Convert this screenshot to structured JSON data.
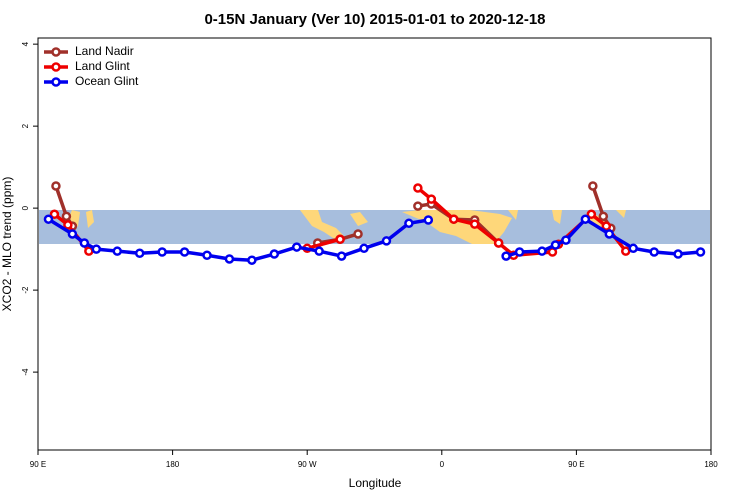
{
  "chart_data": {
    "type": "line",
    "title": "0-15N January (Ver 10)   2015-01-01 to 2020-12-18",
    "x_label": "Longitude",
    "y_label": "XCO2 - MLO trend (ppm)",
    "xlim": [
      90,
      540
    ],
    "ylim": [
      -5.9,
      4.15
    ],
    "xticks": [
      {
        "value": 90,
        "label": "90 E"
      },
      180,
      {
        "value": 270,
        "label": "90 W"
      },
      {
        "value": 360,
        "label": "0"
      },
      {
        "value": 450,
        "label": "90 E"
      },
      180
    ],
    "yticks": [
      -4,
      -2,
      0,
      2,
      4
    ],
    "legend": "top-left",
    "series": [
      {
        "name": "Land Nadir",
        "color": "#a0302a",
        "x": [
          102,
          109,
          113,
          null,
          277,
          292,
          304,
          null,
          344,
          353,
          368,
          382,
          398,
          null,
          461,
          468,
          473
        ],
        "values": [
          0.54,
          -0.2,
          -0.44,
          null,
          -0.85,
          -0.76,
          -0.63,
          null,
          0.05,
          0.1,
          -0.27,
          -0.29,
          -0.85,
          null,
          0.54,
          -0.2,
          -0.49
        ]
      },
      {
        "name": "Land Glint",
        "color": "#ee0000",
        "x": [
          101,
          110,
          124,
          null,
          270,
          292,
          null,
          344,
          353,
          368,
          382,
          398,
          408,
          434,
          438,
          460,
          470,
          483
        ],
        "values": [
          -0.15,
          -0.41,
          -1.05,
          null,
          -0.98,
          -0.76,
          null,
          0.49,
          0.22,
          -0.27,
          -0.39,
          -0.85,
          -1.15,
          -1.07,
          -0.88,
          -0.15,
          -0.44,
          -1.05
        ]
      },
      {
        "name": "Ocean Glint",
        "color": "#0000ee",
        "x": [
          97,
          113,
          121,
          129,
          143,
          158,
          173,
          188,
          203,
          218,
          233,
          248,
          263,
          278,
          293,
          308,
          323,
          338,
          351,
          null,
          403,
          412,
          427,
          436,
          443,
          456,
          472,
          488,
          502,
          518,
          533
        ],
        "values": [
          -0.27,
          -0.63,
          -0.85,
          -1.0,
          -1.05,
          -1.1,
          -1.07,
          -1.07,
          -1.15,
          -1.24,
          -1.27,
          -1.12,
          -0.95,
          -1.05,
          -1.17,
          -0.98,
          -0.8,
          -0.37,
          -0.29,
          null,
          -1.17,
          -1.07,
          -1.05,
          -0.9,
          -0.78,
          -0.27,
          -0.63,
          -0.98,
          -1.07,
          -1.12,
          -1.07
        ]
      }
    ]
  }
}
